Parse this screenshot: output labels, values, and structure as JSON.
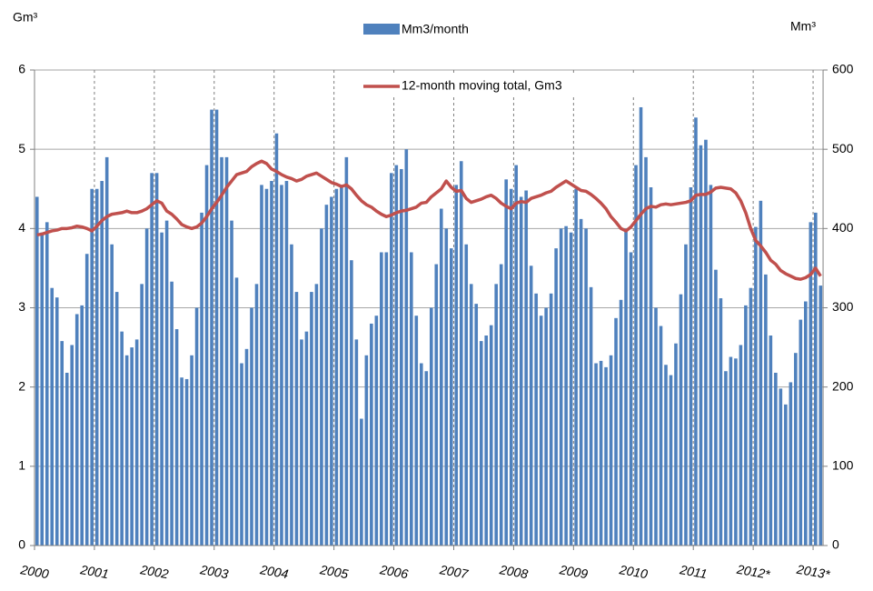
{
  "chart_data": {
    "type": "bar-line",
    "y_label": "Gm³",
    "y2_label": "Mm³",
    "categories": [
      "2000",
      null,
      null,
      null,
      null,
      null,
      null,
      null,
      null,
      null,
      null,
      null,
      "2001",
      null,
      null,
      null,
      null,
      null,
      null,
      null,
      null,
      null,
      null,
      null,
      "2002",
      null,
      null,
      null,
      null,
      null,
      null,
      null,
      null,
      null,
      null,
      null,
      "2003",
      null,
      null,
      null,
      null,
      null,
      null,
      null,
      null,
      null,
      null,
      null,
      "2004",
      null,
      null,
      null,
      null,
      null,
      null,
      null,
      null,
      null,
      null,
      null,
      "2005",
      null,
      null,
      null,
      null,
      null,
      null,
      null,
      null,
      null,
      null,
      null,
      "2006",
      null,
      null,
      null,
      null,
      null,
      null,
      null,
      null,
      null,
      null,
      null,
      "2007",
      null,
      null,
      null,
      null,
      null,
      null,
      null,
      null,
      null,
      null,
      null,
      "2008",
      null,
      null,
      null,
      null,
      null,
      null,
      null,
      null,
      null,
      null,
      null,
      "2009",
      null,
      null,
      null,
      null,
      null,
      null,
      null,
      null,
      null,
      null,
      null,
      "2010",
      null,
      null,
      null,
      null,
      null,
      null,
      null,
      null,
      null,
      null,
      null,
      "2011",
      null,
      null,
      null,
      null,
      null,
      null,
      null,
      null,
      null,
      null,
      null,
      "2012*",
      null,
      null,
      null,
      null,
      null,
      null,
      null,
      null,
      null,
      null,
      null,
      "2013*",
      null
    ],
    "series": [
      {
        "name": "Mm3/month",
        "color": "#4f81bd",
        "kind": "bar",
        "axis": "y2",
        "values": [
          440,
          395,
          408,
          325,
          313,
          258,
          218,
          253,
          292,
          303,
          368,
          450,
          450,
          460,
          490,
          380,
          320,
          270,
          240,
          250,
          260,
          330,
          400,
          470,
          470,
          395,
          410,
          333,
          273,
          212,
          210,
          240,
          300,
          420,
          480,
          550,
          550,
          490,
          490,
          410,
          338,
          230,
          248,
          300,
          330,
          455,
          450,
          460,
          520,
          455,
          460,
          380,
          320,
          260,
          270,
          320,
          330,
          400,
          430,
          440,
          450,
          455,
          490,
          360,
          260,
          160,
          240,
          280,
          290,
          370,
          370,
          470,
          480,
          475,
          500,
          370,
          290,
          230,
          220,
          300,
          355,
          425,
          400,
          375,
          455,
          485,
          380,
          330,
          305,
          258,
          265,
          278,
          330,
          355,
          462,
          450,
          480,
          440,
          448,
          353,
          318,
          290,
          300,
          318,
          375,
          400,
          403,
          395,
          450,
          412,
          400,
          326,
          230,
          233,
          225,
          240,
          287,
          310,
          400,
          370,
          480,
          553,
          490,
          452,
          300,
          277,
          228,
          215,
          255,
          317,
          380,
          452,
          540,
          505,
          512,
          455,
          348,
          312,
          220,
          238,
          236,
          253,
          303,
          325,
          402,
          435,
          342,
          265,
          218,
          198,
          178,
          206,
          243,
          285,
          308,
          408,
          420,
          328
        ]
      },
      {
        "name": "12-month moving total, Gm3",
        "color": "#c0504d",
        "kind": "line",
        "axis": "y",
        "values": [
          3.92,
          3.93,
          3.95,
          3.97,
          3.98,
          4.0,
          4.0,
          4.01,
          4.03,
          4.02,
          4.0,
          3.97,
          4.03,
          4.1,
          4.15,
          4.18,
          4.19,
          4.2,
          4.22,
          4.2,
          4.2,
          4.22,
          4.25,
          4.3,
          4.35,
          4.32,
          4.22,
          4.18,
          4.12,
          4.05,
          4.02,
          4.0,
          4.02,
          4.07,
          4.15,
          4.25,
          4.33,
          4.42,
          4.52,
          4.6,
          4.68,
          4.7,
          4.72,
          4.78,
          4.82,
          4.85,
          4.82,
          4.75,
          4.72,
          4.68,
          4.65,
          4.63,
          4.6,
          4.62,
          4.66,
          4.68,
          4.7,
          4.66,
          4.62,
          4.58,
          4.56,
          4.53,
          4.55,
          4.5,
          4.42,
          4.35,
          4.3,
          4.27,
          4.22,
          4.18,
          4.15,
          4.17,
          4.2,
          4.22,
          4.23,
          4.25,
          4.27,
          4.32,
          4.33,
          4.4,
          4.45,
          4.5,
          4.6,
          4.52,
          4.47,
          4.48,
          4.38,
          4.33,
          4.35,
          4.37,
          4.4,
          4.42,
          4.38,
          4.32,
          4.28,
          4.25,
          4.32,
          4.34,
          4.33,
          4.38,
          4.4,
          4.42,
          4.45,
          4.47,
          4.52,
          4.56,
          4.6,
          4.56,
          4.52,
          4.48,
          4.47,
          4.43,
          4.38,
          4.32,
          4.25,
          4.15,
          4.08,
          4.0,
          3.97,
          4.02,
          4.1,
          4.18,
          4.25,
          4.28,
          4.27,
          4.3,
          4.31,
          4.3,
          4.31,
          4.32,
          4.33,
          4.35,
          4.42,
          4.43,
          4.43,
          4.46,
          4.51,
          4.52,
          4.51,
          4.5,
          4.45,
          4.35,
          4.2,
          4.0,
          3.85,
          3.78,
          3.7,
          3.6,
          3.55,
          3.47,
          3.43,
          3.4,
          3.37,
          3.36,
          3.38,
          3.42,
          3.5,
          3.4
        ]
      }
    ],
    "ylim": [
      0,
      6
    ],
    "yticks": [
      0,
      1,
      2,
      3,
      4,
      5,
      6
    ],
    "y2lim": [
      0,
      600
    ],
    "y2ticks": [
      0,
      100,
      200,
      300,
      400,
      500,
      600
    ],
    "grid": true
  }
}
